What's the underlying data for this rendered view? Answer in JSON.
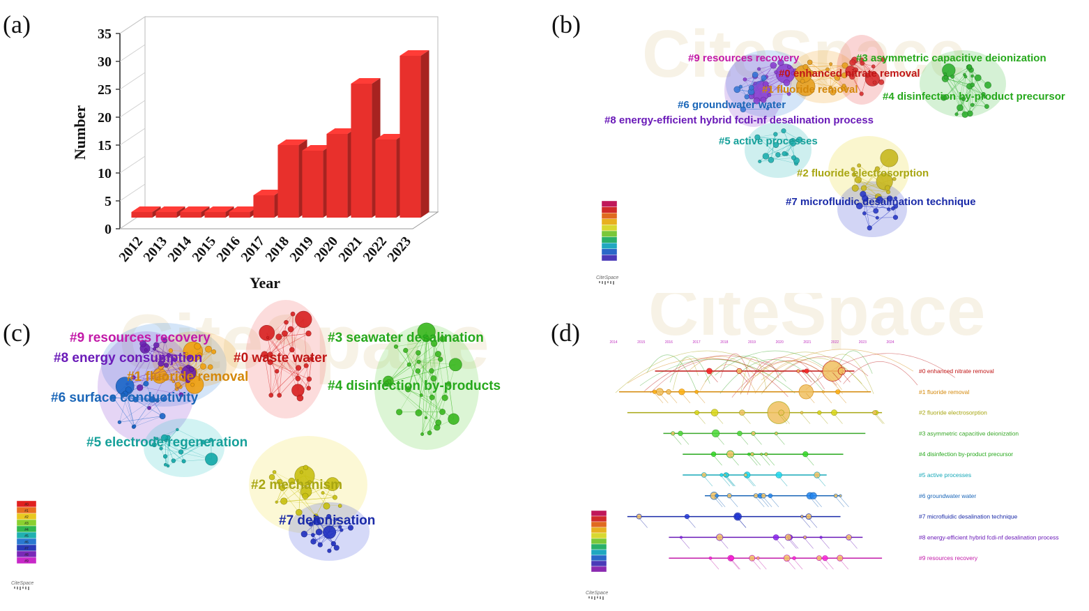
{
  "panels": {
    "a": {
      "letter": "(a)"
    },
    "b": {
      "letter": "(b)"
    },
    "c": {
      "letter": "(c)"
    },
    "d": {
      "letter": "(d)"
    }
  },
  "chart_data": [
    {
      "type": "bar",
      "title": "",
      "xlabel": "Year",
      "ylabel": "Number",
      "categories": [
        "2012",
        "2013",
        "2014",
        "2015",
        "2016",
        "2017",
        "2018",
        "2019",
        "2020",
        "2021",
        "2022",
        "2023"
      ],
      "values": [
        2,
        2,
        2,
        2,
        2,
        5,
        14,
        13,
        16,
        25,
        15,
        30
      ],
      "yticks": [
        0,
        5,
        10,
        15,
        20,
        25,
        30,
        35
      ],
      "ylim": [
        0,
        35
      ],
      "color": "#e8302c"
    }
  ],
  "network_b": {
    "clusters": [
      {
        "label": "#9 resources recovery",
        "color": "#c21aa8"
      },
      {
        "label": "#3 asymmetric capacitive deionization",
        "color": "#26a81c"
      },
      {
        "label": "#0 enhanced nitrate removal",
        "color": "#c01515"
      },
      {
        "label": "#1 fluoride removal",
        "color": "#d4880a"
      },
      {
        "label": "#4 disinfection by-product precursor",
        "color": "#26a81c"
      },
      {
        "label": "#6 groundwater water",
        "color": "#1a66b8"
      },
      {
        "label": "#8 energy-efficient hybrid fcdi-nf desalination process",
        "color": "#6a1ab8"
      },
      {
        "label": "#5 active processes",
        "color": "#16a09a"
      },
      {
        "label": "#2 fluoride electrosorption",
        "color": "#a8a612"
      },
      {
        "label": "#7 microfluidic desalination technique",
        "color": "#1a2aa8"
      }
    ],
    "logo": "CiteSpace"
  },
  "network_c": {
    "clusters": [
      {
        "label": "#9 resources recovery",
        "color": "#c21aa8"
      },
      {
        "label": "#3 seawater desalination",
        "color": "#26a81c"
      },
      {
        "label": "#8 energy consumption",
        "color": "#6a1ab8"
      },
      {
        "label": "#0 waste water",
        "color": "#c01515"
      },
      {
        "label": "#1 fluoride removal",
        "color": "#d4880a"
      },
      {
        "label": "#4 disinfection by-products",
        "color": "#26a81c"
      },
      {
        "label": "#6 surface conductivity",
        "color": "#1a66b8"
      },
      {
        "label": "#5 electrode regeneration",
        "color": "#16a09a"
      },
      {
        "label": "#2 mechanism",
        "color": "#a8a612"
      },
      {
        "label": "#7 deionisation",
        "color": "#1a2aa8"
      }
    ],
    "legend": [
      "#0",
      "#1",
      "#2",
      "#3",
      "#4",
      "#5",
      "#6",
      "#7",
      "#8",
      "#9"
    ],
    "logo": "CiteSpace"
  },
  "timeline_d": {
    "years": [
      "2014",
      "2015",
      "2016",
      "2017",
      "2018",
      "2019",
      "2020",
      "2021",
      "2022",
      "2023",
      "2024"
    ],
    "clusters": [
      {
        "label": "#0 enhanced nitrate removal",
        "color": "#c01515"
      },
      {
        "label": "#1 fluoride removal",
        "color": "#d4880a"
      },
      {
        "label": "#2 fluoride electrosorption",
        "color": "#a8a612"
      },
      {
        "label": "#3 asymmetric capacitive deionization",
        "color": "#3aa82a"
      },
      {
        "label": "#4 disinfection by-product precursor",
        "color": "#26a81c"
      },
      {
        "label": "#5 active processes",
        "color": "#16a8b8"
      },
      {
        "label": "#6 groundwater water",
        "color": "#1a66b8"
      },
      {
        "label": "#7 microfluidic desalination technique",
        "color": "#1a2aa8"
      },
      {
        "label": "#8 energy-efficient hybrid fcdi-nf desalination process",
        "color": "#6a1ab8"
      },
      {
        "label": "#9 resources recovery",
        "color": "#c21aa8"
      }
    ],
    "logo": "CiteSpace"
  }
}
